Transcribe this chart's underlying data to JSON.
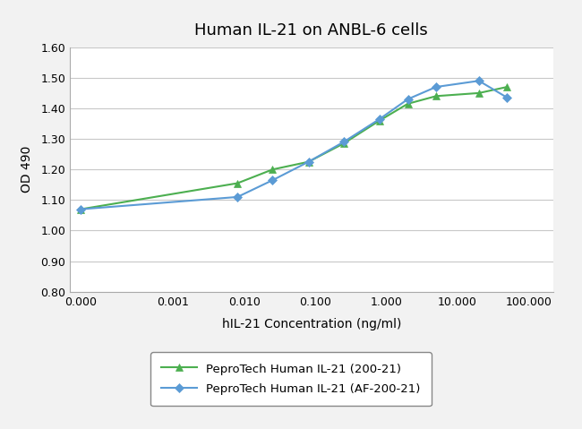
{
  "title": "Human IL-21 on ANBL-6 cells",
  "xlabel": "hIL-21 Concentration (ng/ml)",
  "ylabel": "OD 490",
  "ylim": [
    0.8,
    1.6
  ],
  "yticks": [
    0.8,
    0.9,
    1.0,
    1.1,
    1.2,
    1.3,
    1.4,
    1.5,
    1.6
  ],
  "xtick_positions": [
    5e-05,
    0.001,
    0.01,
    0.1,
    1.0,
    10.0,
    100.0
  ],
  "xtick_labels": [
    "0.000",
    "0.001",
    "0.010",
    "0.100",
    "1.000",
    "10.000",
    "100.000"
  ],
  "xlim_left": 3.5e-05,
  "xlim_right": 220.0,
  "series1": {
    "label": "PeproTech Human IL-21 (200-21)",
    "color": "#4CAF50",
    "marker": "^",
    "x": [
      5e-05,
      0.008,
      0.025,
      0.08,
      0.25,
      0.8,
      2.0,
      5.0,
      20.0,
      50.0
    ],
    "y": [
      1.07,
      1.155,
      1.2,
      1.225,
      1.285,
      1.36,
      1.415,
      1.44,
      1.45,
      1.47
    ]
  },
  "series2": {
    "label": "PeproTech Human IL-21 (AF-200-21)",
    "color": "#5b9bd5",
    "marker": "D",
    "x": [
      5e-05,
      0.008,
      0.025,
      0.08,
      0.25,
      0.8,
      2.0,
      5.0,
      20.0,
      50.0
    ],
    "y": [
      1.07,
      1.11,
      1.165,
      1.225,
      1.29,
      1.365,
      1.43,
      1.47,
      1.49,
      1.435
    ]
  },
  "figure_facecolor": "#f2f2f2",
  "plot_facecolor": "#ffffff",
  "grid_color": "#c8c8c8",
  "spine_color": "#aaaaaa",
  "title_fontsize": 13,
  "label_fontsize": 10,
  "tick_fontsize": 9,
  "legend_fontsize": 9.5
}
